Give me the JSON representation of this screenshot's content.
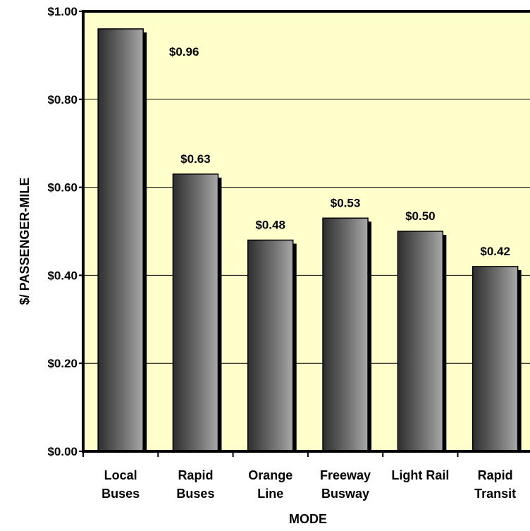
{
  "chart_data": {
    "type": "bar",
    "title": "",
    "xlabel": "MODE",
    "ylabel": "$/ PASSENGER-MILE",
    "categories": [
      [
        "Local",
        "Buses"
      ],
      [
        "Rapid",
        "Buses"
      ],
      [
        "Orange",
        "Line"
      ],
      [
        "Freeway",
        "Busway"
      ],
      [
        "Light Rail"
      ],
      [
        "Rapid",
        "Transit"
      ]
    ],
    "values": [
      0.96,
      0.63,
      0.48,
      0.53,
      0.5,
      0.42
    ],
    "data_labels": [
      "$0.96",
      "$0.63",
      "$0.48",
      "$0.53",
      "$0.50",
      "$0.42"
    ],
    "ylim": [
      0,
      1.0
    ],
    "yticks": [
      0,
      0.2,
      0.4,
      0.6,
      0.8,
      1.0
    ],
    "ytick_labels": [
      "$0.00",
      "$0.20",
      "$0.40",
      "$0.60",
      "$0.80",
      "$1.00"
    ],
    "grid": true,
    "legend": "none",
    "colors": {
      "plot_background": "#ffffcc",
      "bar_dark": "#3a3a3a",
      "bar_light": "#9a9a9a",
      "bar_shadow": "#000000",
      "frame": "#000000",
      "gridline": "#000000"
    }
  }
}
